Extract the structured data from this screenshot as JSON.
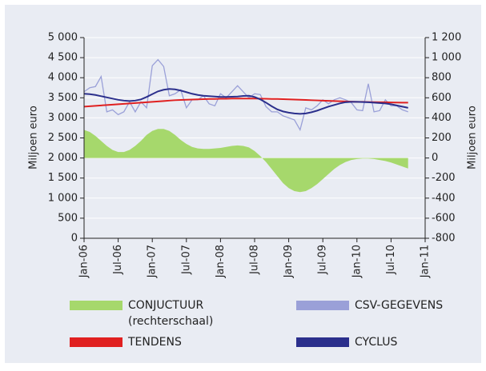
{
  "chart_data": {
    "type": "line",
    "x": [
      "2006-01",
      "2006-02",
      "2006-03",
      "2006-04",
      "2006-05",
      "2006-06",
      "2006-07",
      "2006-08",
      "2006-09",
      "2006-10",
      "2006-11",
      "2006-12",
      "2007-01",
      "2007-02",
      "2007-03",
      "2007-04",
      "2007-05",
      "2007-06",
      "2007-07",
      "2007-08",
      "2007-09",
      "2007-10",
      "2007-11",
      "2007-12",
      "2008-01",
      "2008-02",
      "2008-03",
      "2008-04",
      "2008-05",
      "2008-06",
      "2008-07",
      "2008-08",
      "2008-09",
      "2008-10",
      "2008-11",
      "2008-12",
      "2009-01",
      "2009-02",
      "2009-03",
      "2009-04",
      "2009-05",
      "2009-06",
      "2009-07",
      "2009-08",
      "2009-09",
      "2009-10",
      "2009-11",
      "2009-12",
      "2010-01",
      "2010-02",
      "2010-03",
      "2010-04",
      "2010-05",
      "2010-06",
      "2010-07",
      "2010-08",
      "2010-09",
      "2010-10"
    ],
    "xlim": [
      "2006-01",
      "2011-01"
    ],
    "xticks": [
      {
        "value": "2006-01",
        "label": "Jan-06"
      },
      {
        "value": "2006-07",
        "label": "Jul-06"
      },
      {
        "value": "2007-01",
        "label": "Jan-07"
      },
      {
        "value": "2007-07",
        "label": "Jul-07"
      },
      {
        "value": "2008-01",
        "label": "Jan-08"
      },
      {
        "value": "2008-07",
        "label": "Jul-08"
      },
      {
        "value": "2009-01",
        "label": "Jan-09"
      },
      {
        "value": "2009-07",
        "label": "Jul-09"
      },
      {
        "value": "2010-01",
        "label": "Jan-10"
      },
      {
        "value": "2010-07",
        "label": "Jul-10"
      },
      {
        "value": "2011-01",
        "label": "Jan-11"
      }
    ],
    "ylabel": "Miljoen euro",
    "y2label": "Miljoen euro",
    "ylim": [
      0,
      5000
    ],
    "yticks": [
      0,
      500,
      {
        "value": 1000,
        "label": "1 000"
      },
      {
        "value": 1500,
        "label": "1 500"
      },
      {
        "value": 2000,
        "label": "2 000"
      },
      {
        "value": 2500,
        "label": "2 500"
      },
      {
        "value": 3000,
        "label": "3 000"
      },
      {
        "value": 3500,
        "label": "3 500"
      },
      {
        "value": 4000,
        "label": "4 000"
      },
      {
        "value": 4500,
        "label": "4 500"
      },
      {
        "value": 5000,
        "label": "5 000"
      }
    ],
    "y2lim": [
      -800,
      1200
    ],
    "y2ticks": [
      -800,
      -600,
      -400,
      -200,
      0,
      200,
      400,
      600,
      800,
      {
        "value": 1000,
        "label": "1 000"
      },
      {
        "value": 1200,
        "label": "1 200"
      }
    ],
    "grid": true,
    "legend_note": "(rechterschaal)",
    "series": [
      {
        "name": "CONJUCTUUR",
        "kind": "area",
        "axis": "y2",
        "color": "#a6d86c",
        "values": [
          280,
          260,
          220,
          170,
          120,
          80,
          60,
          60,
          80,
          120,
          170,
          230,
          270,
          290,
          290,
          270,
          230,
          180,
          140,
          110,
          95,
          90,
          90,
          95,
          100,
          110,
          120,
          125,
          120,
          105,
          70,
          20,
          -40,
          -110,
          -180,
          -250,
          -300,
          -330,
          -340,
          -330,
          -300,
          -260,
          -210,
          -160,
          -110,
          -70,
          -40,
          -20,
          -10,
          -5,
          -5,
          -10,
          -20,
          -30,
          -45,
          -65,
          -85,
          -105
        ]
      },
      {
        "name": "CSV-GEGEVENS",
        "kind": "line",
        "color": "#9aa0d8",
        "values": [
          3650,
          3750,
          3780,
          4030,
          3150,
          3200,
          3080,
          3150,
          3400,
          3150,
          3400,
          3250,
          4300,
          4450,
          4280,
          3550,
          3600,
          3700,
          3250,
          3450,
          3450,
          3550,
          3350,
          3300,
          3600,
          3500,
          3650,
          3800,
          3650,
          3500,
          3600,
          3580,
          3280,
          3150,
          3150,
          3050,
          3000,
          2950,
          2700,
          3250,
          3200,
          3300,
          3450,
          3350,
          3450,
          3500,
          3450,
          3380,
          3200,
          3180,
          3850,
          3150,
          3180,
          3450,
          3300,
          3300,
          3200,
          3150
        ]
      },
      {
        "name": "TENDENS",
        "kind": "line",
        "color": "#e02020",
        "values": [
          3280,
          3290,
          3300,
          3310,
          3320,
          3330,
          3340,
          3350,
          3360,
          3370,
          3380,
          3390,
          3400,
          3410,
          3420,
          3430,
          3440,
          3445,
          3450,
          3455,
          3460,
          3465,
          3470,
          3470,
          3475,
          3475,
          3480,
          3480,
          3480,
          3480,
          3480,
          3478,
          3475,
          3472,
          3470,
          3465,
          3460,
          3455,
          3450,
          3445,
          3440,
          3435,
          3430,
          3425,
          3420,
          3415,
          3410,
          3405,
          3400,
          3398,
          3395,
          3392,
          3390,
          3388,
          3385,
          3382,
          3380,
          3378
        ]
      },
      {
        "name": "CYCLUS",
        "kind": "line",
        "color": "#2b2f8c",
        "values": [
          3600,
          3590,
          3570,
          3540,
          3510,
          3480,
          3450,
          3430,
          3420,
          3430,
          3460,
          3520,
          3590,
          3660,
          3700,
          3720,
          3710,
          3680,
          3640,
          3600,
          3570,
          3550,
          3540,
          3530,
          3520,
          3520,
          3525,
          3530,
          3545,
          3550,
          3520,
          3460,
          3380,
          3290,
          3210,
          3160,
          3130,
          3110,
          3100,
          3110,
          3140,
          3180,
          3230,
          3280,
          3320,
          3360,
          3390,
          3400,
          3400,
          3395,
          3390,
          3380,
          3370,
          3360,
          3340,
          3310,
          3280,
          3250
        ]
      }
    ]
  }
}
